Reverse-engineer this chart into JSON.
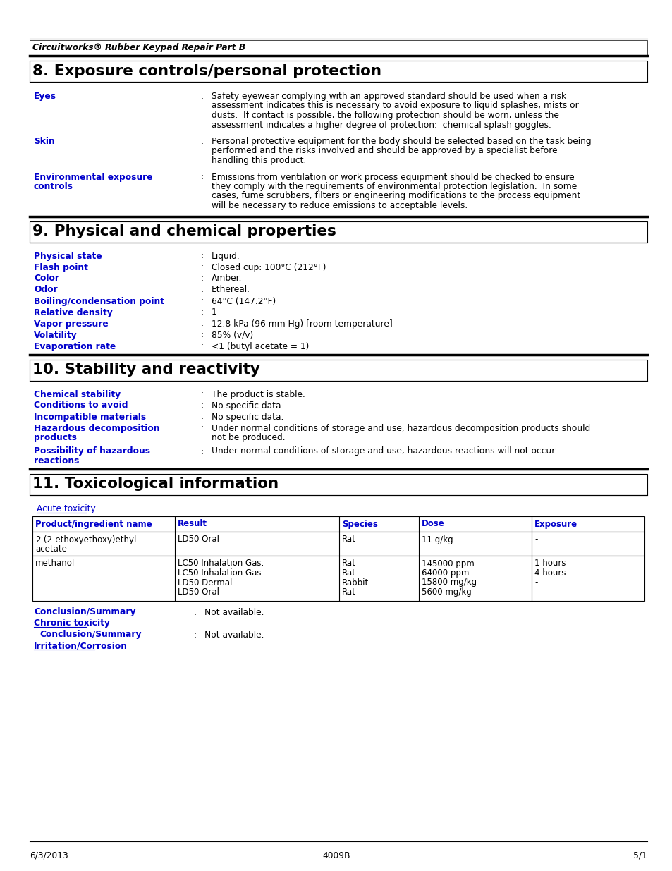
{
  "bg_color": "#ffffff",
  "blue_color": "#0000cc",
  "page_header": "Circuitworks® Rubber Keypad Repair Part B",
  "footer_left": "6/3/2013.",
  "footer_center": "4009B",
  "footer_right": "5/1"
}
